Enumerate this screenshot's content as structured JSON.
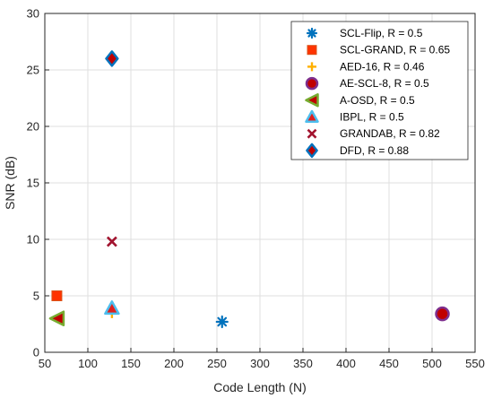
{
  "chart_data": {
    "type": "scatter",
    "title": "",
    "xlabel": "Code Length (N)",
    "ylabel": "SNR (dB)",
    "xlim": [
      50,
      550
    ],
    "ylim": [
      0,
      30
    ],
    "xticks": [
      50,
      100,
      150,
      200,
      250,
      300,
      350,
      400,
      450,
      500,
      550
    ],
    "yticks": [
      0,
      5,
      10,
      15,
      20,
      25,
      30
    ],
    "grid": true,
    "legend_position": "top-right",
    "series": [
      {
        "name": "SCL-Flip, R = 0.5",
        "marker": "asterisk",
        "color": "#0072BD",
        "points": [
          [
            256,
            2.7
          ]
        ]
      },
      {
        "name": "SCL-GRAND, R = 0.65",
        "marker": "square",
        "color": "#FF3300",
        "points": [
          [
            64,
            5.0
          ]
        ]
      },
      {
        "name": "AED-16, R = 0.46",
        "marker": "plus",
        "color": "#FFB000",
        "points": [
          [
            128,
            3.5
          ]
        ]
      },
      {
        "name": "AE-SCL-8, R = 0.5",
        "marker": "circle",
        "color": "#C00000",
        "edge": "#7E2F8E",
        "points": [
          [
            512,
            3.4
          ]
        ]
      },
      {
        "name": "A-OSD, R = 0.5",
        "marker": "triangle-left",
        "color": "#C00000",
        "edge": "#77AC30",
        "points": [
          [
            64,
            3.0
          ]
        ]
      },
      {
        "name": "IBPL, R = 0.5",
        "marker": "triangle-up",
        "color": "#E0201E",
        "edge": "#4DBEEE",
        "points": [
          [
            128,
            3.9
          ]
        ]
      },
      {
        "name": "GRANDAB, R = 0.82",
        "marker": "x",
        "color": "#A2142F",
        "points": [
          [
            128,
            9.8
          ]
        ]
      },
      {
        "name": "DFD, R = 0.88",
        "marker": "diamond",
        "color": "#C00000",
        "edge": "#0072BD",
        "points": [
          [
            128,
            26.0
          ]
        ]
      }
    ]
  }
}
